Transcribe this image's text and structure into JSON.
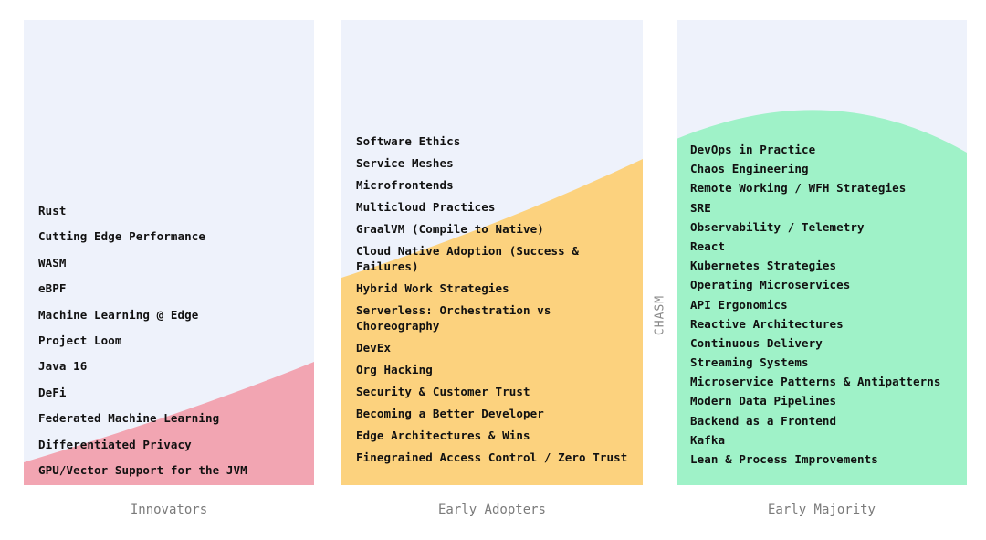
{
  "colors": {
    "panel_background": "#eef2fb",
    "innovators": "#f2a5b2",
    "early_adopters": "#fcd27e",
    "early_majority": "#9ff2c8",
    "label_text": "#7a7a7a",
    "item_text": "#111111"
  },
  "chasm_label": "CHASM",
  "columns": [
    {
      "label": "Innovators",
      "items": [
        "Rust",
        "Cutting Edge Performance",
        "WASM",
        "eBPF",
        "Machine Learning @ Edge",
        "Project Loom",
        "Java 16",
        "DeFi",
        "Federated Machine Learning",
        "Differentiated Privacy",
        "GPU/Vector Support for the JVM"
      ]
    },
    {
      "label": "Early Adopters",
      "items": [
        "Software Ethics",
        "Service Meshes",
        "Microfrontends",
        "Multicloud Practices",
        "GraalVM (Compile to Native)",
        "Cloud Native Adoption (Success & Failures)",
        "Hybrid Work Strategies",
        "Serverless: Orchestration vs Choreography",
        "DevEx",
        "Org Hacking",
        "Security & Customer Trust",
        "Becoming a Better Developer",
        "Edge Architectures & Wins",
        "Finegrained Access Control / Zero Trust"
      ]
    },
    {
      "label": "Early Majority",
      "items": [
        "DevOps in Practice",
        "Chaos Engineering",
        "Remote Working / WFH Strategies",
        "SRE",
        "Observability / Telemetry",
        "React",
        "Kubernetes Strategies",
        "Operating Microservices",
        "API Ergonomics",
        "Reactive Architectures",
        "Continuous Delivery",
        "Streaming Systems",
        "Microservice Patterns & Antipatterns",
        "Modern Data Pipelines",
        "Backend as a Frontend",
        "Kafka",
        "Lean & Process Improvements"
      ]
    }
  ]
}
